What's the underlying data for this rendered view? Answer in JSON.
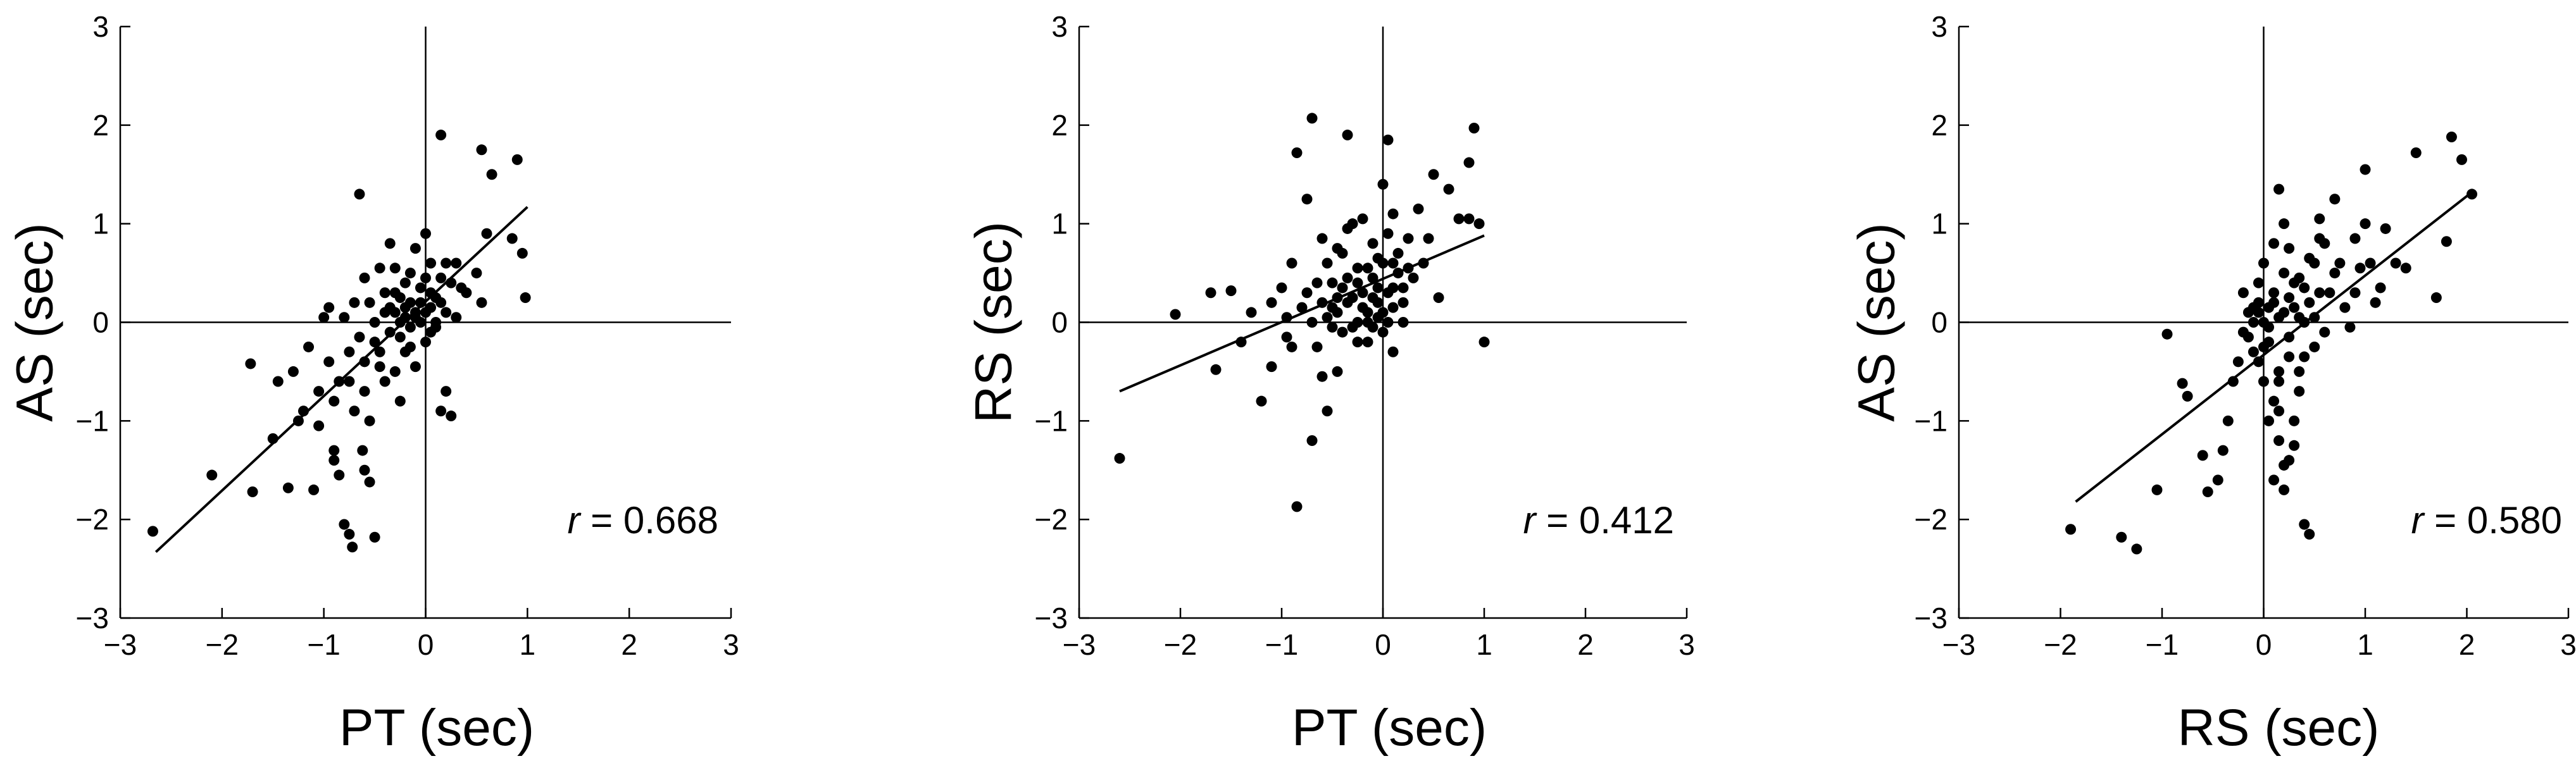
{
  "chart_data": [
    {
      "type": "scatter",
      "xlabel": "PT (sec)",
      "ylabel": "AS (sec)",
      "xlim": [
        -3,
        3
      ],
      "ylim": [
        -3,
        3
      ],
      "xticks": [
        "−3",
        "−2",
        "−1",
        "0",
        "1",
        "2",
        "3"
      ],
      "yticks": [
        "−3",
        "−2",
        "−1",
        "0",
        "1",
        "2",
        "3"
      ],
      "annotation": {
        "symbol": "r",
        "text": " = 0.668"
      },
      "fit_line": [
        [
          -2.65,
          -2.33
        ],
        [
          1.0,
          1.17
        ]
      ],
      "points": [
        [
          -2.68,
          -2.12
        ],
        [
          -2.1,
          -1.55
        ],
        [
          -1.7,
          -1.72
        ],
        [
          -1.72,
          -0.42
        ],
        [
          -1.45,
          -0.6
        ],
        [
          -1.5,
          -1.18
        ],
        [
          -1.35,
          -1.68
        ],
        [
          -1.25,
          -1.0
        ],
        [
          -1.1,
          -1.7
        ],
        [
          -1.05,
          -0.7
        ],
        [
          -0.9,
          -0.8
        ],
        [
          -1.15,
          -0.25
        ],
        [
          -1.0,
          0.05
        ],
        [
          -0.9,
          -1.4
        ],
        [
          -0.85,
          -1.55
        ],
        [
          -0.8,
          -2.05
        ],
        [
          -0.75,
          -2.15
        ],
        [
          -0.72,
          -2.28
        ],
        [
          -0.62,
          -1.3
        ],
        [
          -0.6,
          -1.5
        ],
        [
          -0.55,
          -1.62
        ],
        [
          -0.5,
          -2.18
        ],
        [
          -0.65,
          1.3
        ],
        [
          -0.85,
          -0.6
        ],
        [
          -0.95,
          -0.4
        ],
        [
          -0.75,
          -0.3
        ],
        [
          -0.7,
          -0.9
        ],
        [
          -0.6,
          -0.7
        ],
        [
          -0.55,
          -1.0
        ],
        [
          -0.5,
          -0.2
        ],
        [
          -0.45,
          -0.45
        ],
        [
          -0.4,
          -0.6
        ],
        [
          -0.4,
          0.1
        ],
        [
          -0.35,
          -0.1
        ],
        [
          -0.3,
          0.3
        ],
        [
          -0.25,
          0.0
        ],
        [
          -0.2,
          -0.3
        ],
        [
          -0.2,
          0.15
        ],
        [
          -0.15,
          0.5
        ],
        [
          -0.1,
          0.05
        ],
        [
          -0.05,
          0.2
        ],
        [
          0.0,
          0.1
        ],
        [
          0.05,
          0.3
        ],
        [
          0.05,
          -0.1
        ],
        [
          0.1,
          0.0
        ],
        [
          0.15,
          0.2
        ],
        [
          0.2,
          0.1
        ],
        [
          0.25,
          0.4
        ],
        [
          0.0,
          0.9
        ],
        [
          0.05,
          0.6
        ],
        [
          -0.1,
          0.75
        ],
        [
          -0.35,
          0.8
        ],
        [
          -0.45,
          0.55
        ],
        [
          -0.6,
          0.45
        ],
        [
          -0.7,
          0.2
        ],
        [
          -0.8,
          0.05
        ],
        [
          -0.95,
          0.15
        ],
        [
          -1.3,
          -0.5
        ],
        [
          -1.2,
          -0.9
        ],
        [
          -0.65,
          -0.15
        ],
        [
          -0.3,
          -0.5
        ],
        [
          -0.25,
          -0.8
        ],
        [
          -0.15,
          -0.25
        ],
        [
          -0.1,
          -0.45
        ],
        [
          0.0,
          -0.2
        ],
        [
          0.1,
          -0.05
        ],
        [
          0.3,
          0.05
        ],
        [
          0.4,
          0.3
        ],
        [
          0.3,
          0.6
        ],
        [
          0.15,
          0.45
        ],
        [
          0.1,
          0.25
        ],
        [
          -0.05,
          0.35
        ],
        [
          -0.2,
          0.4
        ],
        [
          -0.3,
          0.55
        ],
        [
          -0.4,
          0.3
        ],
        [
          -0.5,
          0.0
        ],
        [
          -0.55,
          0.2
        ],
        [
          -0.15,
          -0.05
        ],
        [
          -0.35,
          0.15
        ],
        [
          -0.25,
          0.25
        ],
        [
          0.2,
          0.6
        ],
        [
          0.2,
          -0.7
        ],
        [
          0.25,
          -0.95
        ],
        [
          0.15,
          -0.9
        ],
        [
          0.15,
          1.9
        ],
        [
          0.55,
          1.75
        ],
        [
          0.65,
          1.5
        ],
        [
          0.9,
          1.65
        ],
        [
          0.6,
          0.9
        ],
        [
          0.85,
          0.85
        ],
        [
          0.95,
          0.7
        ],
        [
          0.5,
          0.5
        ],
        [
          0.55,
          0.2
        ],
        [
          0.98,
          0.25
        ],
        [
          0.35,
          0.35
        ],
        [
          -0.05,
          0.0
        ],
        [
          0.05,
          0.15
        ],
        [
          -0.1,
          0.1
        ],
        [
          -0.25,
          -0.15
        ],
        [
          -0.45,
          -0.3
        ],
        [
          -0.6,
          -0.4
        ],
        [
          -0.75,
          -0.6
        ],
        [
          -1.05,
          -1.05
        ],
        [
          -0.9,
          -1.3
        ],
        [
          -0.2,
          0.05
        ],
        [
          0.0,
          0.45
        ],
        [
          -0.3,
          0.1
        ],
        [
          -0.15,
          0.2
        ]
      ]
    },
    {
      "type": "scatter",
      "xlabel": "PT (sec)",
      "ylabel": "RS (sec)",
      "xlim": [
        -3,
        3
      ],
      "ylim": [
        -3,
        3
      ],
      "xticks": [
        "−3",
        "−2",
        "−1",
        "0",
        "1",
        "2",
        "3"
      ],
      "yticks": [
        "−3",
        "−2",
        "−1",
        "0",
        "1",
        "2",
        "3"
      ],
      "annotation": {
        "symbol": "r",
        "text": " = 0.412"
      },
      "fit_line": [
        [
          -2.6,
          -0.7
        ],
        [
          1.0,
          0.88
        ]
      ],
      "points": [
        [
          -2.6,
          -1.38
        ],
        [
          -2.05,
          0.08
        ],
        [
          -1.7,
          0.3
        ],
        [
          -1.5,
          0.32
        ],
        [
          -1.65,
          -0.48
        ],
        [
          -1.2,
          -0.8
        ],
        [
          -1.0,
          0.35
        ],
        [
          -0.95,
          0.05
        ],
        [
          -0.9,
          -0.25
        ],
        [
          -0.85,
          1.72
        ],
        [
          -0.7,
          2.07
        ],
        [
          -0.35,
          1.9
        ],
        [
          -0.75,
          1.25
        ],
        [
          -0.85,
          -1.87
        ],
        [
          -0.7,
          -1.2
        ],
        [
          -0.55,
          -0.9
        ],
        [
          -0.6,
          -0.55
        ],
        [
          -0.45,
          -0.5
        ],
        [
          -0.7,
          0.0
        ],
        [
          -0.6,
          0.2
        ],
        [
          -0.5,
          0.4
        ],
        [
          -0.45,
          0.1
        ],
        [
          -0.4,
          0.7
        ],
        [
          -0.35,
          0.95
        ],
        [
          -0.3,
          1.0
        ],
        [
          -0.25,
          0.55
        ],
        [
          -0.2,
          0.3
        ],
        [
          -0.15,
          0.1
        ],
        [
          -0.1,
          0.45
        ],
        [
          -0.05,
          0.2
        ],
        [
          0.0,
          0.6
        ],
        [
          0.05,
          0.3
        ],
        [
          0.1,
          0.15
        ],
        [
          0.15,
          0.5
        ],
        [
          0.2,
          0.0
        ],
        [
          0.1,
          -0.3
        ],
        [
          0.0,
          -0.1
        ],
        [
          -0.05,
          0.05
        ],
        [
          -0.15,
          -0.2
        ],
        [
          -0.25,
          0.0
        ],
        [
          -0.3,
          0.25
        ],
        [
          -0.35,
          0.45
        ],
        [
          -0.4,
          -0.1
        ],
        [
          -0.5,
          0.15
        ],
        [
          -0.55,
          0.6
        ],
        [
          -0.6,
          0.85
        ],
        [
          -0.65,
          0.4
        ],
        [
          -0.8,
          0.15
        ],
        [
          -0.9,
          0.6
        ],
        [
          -1.1,
          0.2
        ],
        [
          -1.3,
          0.1
        ],
        [
          -1.4,
          -0.2
        ],
        [
          -1.1,
          -0.45
        ],
        [
          -0.95,
          -0.15
        ],
        [
          0.05,
          1.85
        ],
        [
          0.0,
          1.4
        ],
        [
          0.1,
          1.1
        ],
        [
          0.25,
          0.85
        ],
        [
          0.35,
          1.15
        ],
        [
          0.45,
          0.85
        ],
        [
          0.5,
          1.5
        ],
        [
          0.65,
          1.35
        ],
        [
          0.9,
          1.97
        ],
        [
          0.85,
          1.62
        ],
        [
          0.75,
          1.05
        ],
        [
          0.85,
          1.05
        ],
        [
          0.95,
          1.0
        ],
        [
          1.0,
          -0.2
        ],
        [
          0.55,
          0.25
        ],
        [
          0.3,
          0.45
        ],
        [
          0.2,
          0.35
        ],
        [
          0.15,
          0.7
        ],
        [
          0.05,
          0.9
        ],
        [
          -0.1,
          0.8
        ],
        [
          -0.2,
          1.05
        ],
        [
          -0.45,
          0.75
        ],
        [
          -0.25,
          -0.2
        ],
        [
          -0.1,
          -0.05
        ],
        [
          0.0,
          0.1
        ],
        [
          0.05,
          0.0
        ],
        [
          0.1,
          0.35
        ],
        [
          -0.05,
          0.35
        ],
        [
          -0.15,
          0.55
        ],
        [
          -0.2,
          0.15
        ],
        [
          -0.3,
          -0.05
        ],
        [
          -0.35,
          0.2
        ],
        [
          -0.4,
          0.35
        ],
        [
          -0.45,
          0.25
        ],
        [
          -0.5,
          -0.05
        ],
        [
          -0.55,
          0.05
        ],
        [
          -0.65,
          -0.25
        ],
        [
          -0.75,
          0.3
        ],
        [
          -0.15,
          0.0
        ],
        [
          0.2,
          0.2
        ],
        [
          0.25,
          0.55
        ],
        [
          0.4,
          0.6
        ],
        [
          0.1,
          0.6
        ],
        [
          -0.05,
          0.65
        ],
        [
          -0.25,
          0.4
        ],
        [
          -0.1,
          0.25
        ]
      ]
    },
    {
      "type": "scatter",
      "xlabel": "RS (sec)",
      "ylabel": "AS (sec)",
      "xlim": [
        -3,
        3
      ],
      "ylim": [
        -3,
        3
      ],
      "xticks": [
        "−3",
        "−2",
        "−1",
        "0",
        "1",
        "2",
        "3"
      ],
      "yticks": [
        "−3",
        "−2",
        "−1",
        "0",
        "1",
        "2",
        "3"
      ],
      "annotation": {
        "symbol": "r",
        "text": " = 0.580"
      },
      "fit_line": [
        [
          -1.85,
          -1.82
        ],
        [
          2.05,
          1.32
        ]
      ],
      "points": [
        [
          -1.9,
          -2.1
        ],
        [
          -1.4,
          -2.18
        ],
        [
          -1.25,
          -2.3
        ],
        [
          -1.05,
          -1.7
        ],
        [
          -0.95,
          -0.12
        ],
        [
          -0.8,
          -0.62
        ],
        [
          -0.75,
          -0.75
        ],
        [
          -0.6,
          -1.35
        ],
        [
          -0.55,
          -1.72
        ],
        [
          -0.45,
          -1.6
        ],
        [
          -0.4,
          -1.3
        ],
        [
          -0.35,
          -1.0
        ],
        [
          -0.3,
          -0.6
        ],
        [
          -0.25,
          -0.4
        ],
        [
          -0.2,
          -0.1
        ],
        [
          -0.15,
          0.1
        ],
        [
          -0.1,
          -0.3
        ],
        [
          -0.05,
          0.2
        ],
        [
          0.0,
          0.0
        ],
        [
          0.05,
          -0.2
        ],
        [
          0.1,
          0.3
        ],
        [
          0.15,
          -0.5
        ],
        [
          0.2,
          0.1
        ],
        [
          0.25,
          -0.15
        ],
        [
          0.3,
          0.4
        ],
        [
          0.35,
          0.05
        ],
        [
          0.4,
          -0.35
        ],
        [
          0.45,
          0.2
        ],
        [
          0.5,
          0.6
        ],
        [
          0.55,
          0.3
        ],
        [
          0.6,
          0.8
        ],
        [
          0.7,
          0.5
        ],
        [
          0.8,
          0.15
        ],
        [
          0.9,
          0.3
        ],
        [
          1.0,
          1.0
        ],
        [
          1.05,
          0.6
        ],
        [
          1.1,
          0.2
        ],
        [
          1.0,
          1.55
        ],
        [
          1.5,
          1.72
        ],
        [
          1.85,
          1.88
        ],
        [
          1.95,
          1.65
        ],
        [
          2.05,
          1.3
        ],
        [
          1.8,
          0.82
        ],
        [
          1.7,
          0.25
        ],
        [
          1.3,
          0.6
        ],
        [
          1.2,
          0.95
        ],
        [
          0.15,
          1.35
        ],
        [
          0.2,
          1.0
        ],
        [
          0.1,
          0.8
        ],
        [
          0.0,
          0.6
        ],
        [
          -0.05,
          0.4
        ],
        [
          0.1,
          -0.8
        ],
        [
          0.15,
          -1.2
        ],
        [
          0.2,
          -1.7
        ],
        [
          0.25,
          -1.4
        ],
        [
          0.3,
          -1.0
        ],
        [
          0.4,
          -2.05
        ],
        [
          0.45,
          -2.15
        ],
        [
          0.35,
          -0.7
        ],
        [
          0.3,
          -1.25
        ],
        [
          0.2,
          -1.45
        ],
        [
          0.1,
          -1.6
        ],
        [
          0.05,
          -1.0
        ],
        [
          0.0,
          -0.6
        ],
        [
          -0.05,
          -0.4
        ],
        [
          -0.1,
          0.0
        ],
        [
          -0.2,
          0.3
        ],
        [
          0.05,
          0.15
        ],
        [
          0.15,
          0.05
        ],
        [
          0.25,
          0.25
        ],
        [
          0.35,
          0.45
        ],
        [
          0.45,
          0.65
        ],
        [
          0.55,
          0.85
        ],
        [
          0.65,
          0.3
        ],
        [
          0.75,
          0.6
        ],
        [
          0.85,
          -0.05
        ],
        [
          0.6,
          -0.1
        ],
        [
          0.5,
          -0.25
        ],
        [
          0.4,
          0.0
        ],
        [
          0.25,
          -0.35
        ],
        [
          0.15,
          -0.6
        ],
        [
          0.0,
          -0.25
        ],
        [
          -0.1,
          0.15
        ],
        [
          0.2,
          0.5
        ],
        [
          0.1,
          0.2
        ],
        [
          0.3,
          0.15
        ],
        [
          0.4,
          0.35
        ],
        [
          0.05,
          -0.05
        ],
        [
          -0.05,
          0.1
        ],
        [
          0.7,
          1.25
        ],
        [
          0.55,
          1.05
        ],
        [
          0.95,
          0.55
        ],
        [
          1.15,
          0.35
        ],
        [
          1.4,
          0.55
        ],
        [
          0.9,
          0.85
        ],
        [
          0.25,
          0.75
        ],
        [
          0.35,
          -0.5
        ],
        [
          0.15,
          -0.9
        ],
        [
          -0.15,
          -0.15
        ],
        [
          0.5,
          0.05
        ]
      ]
    }
  ]
}
